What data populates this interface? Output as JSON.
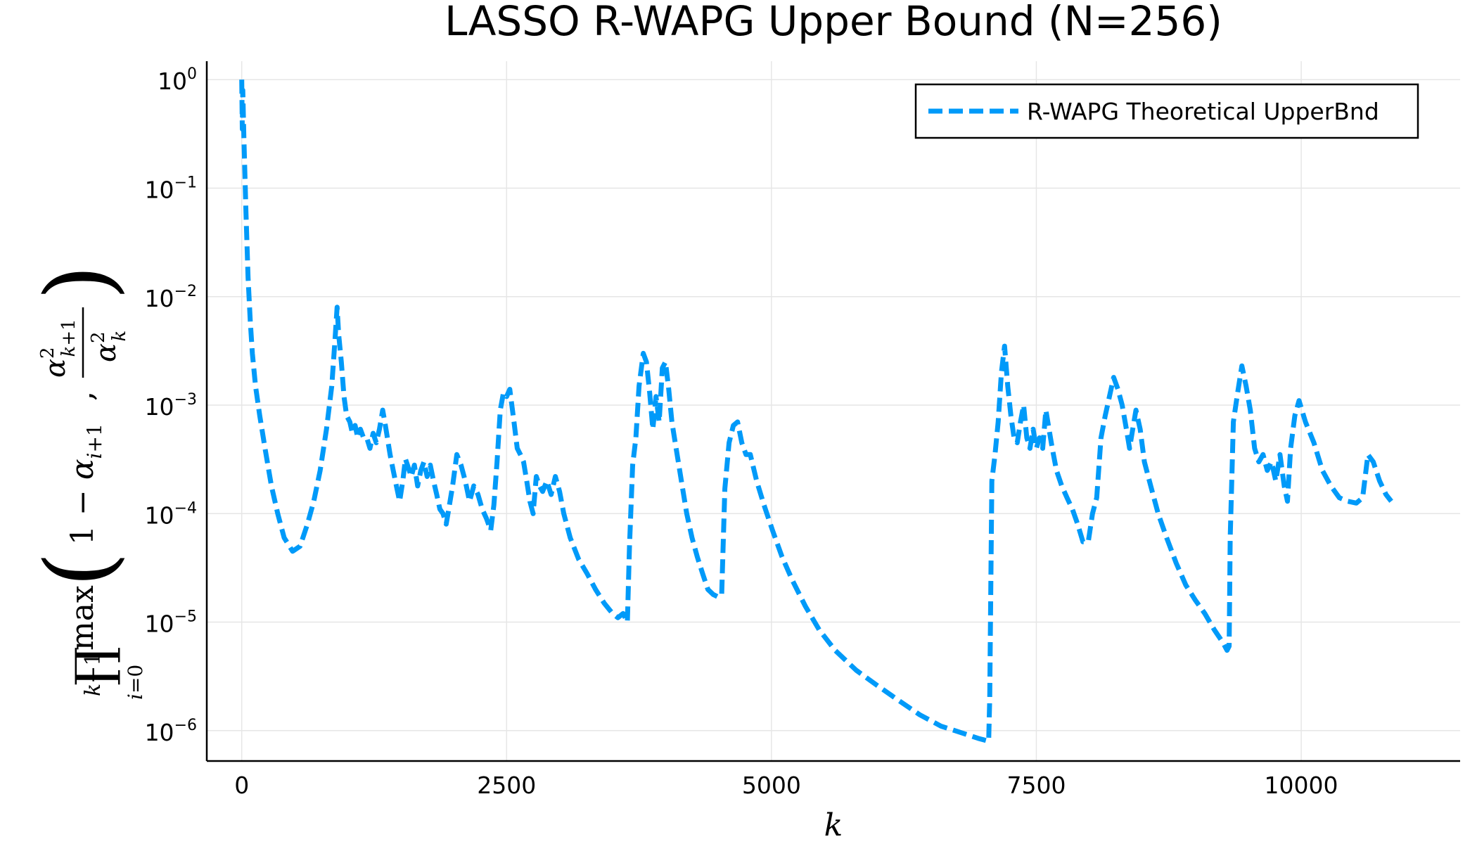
{
  "chart_data": {
    "type": "line",
    "title": "LASSO R-WAPG Upper Bound (N=256)",
    "xlabel": "k",
    "ylabel": "∏_{i=0}^{k−1} max(1 − α_{i+1}, α_{k+1}^2 / α_k^2)",
    "xlim": [
      -330,
      11500
    ],
    "ylim_log10": [
      -6.28,
      0.17
    ],
    "y_scale": "log",
    "x_ticks": [
      0,
      2500,
      5000,
      7500,
      10000
    ],
    "x_tick_labels": [
      "0",
      "2500",
      "5000",
      "7500",
      "10000"
    ],
    "y_ticks_log10": [
      0,
      -1,
      -2,
      -3,
      -4,
      -5,
      -6
    ],
    "y_tick_exponents": [
      "0",
      "−1",
      "−2",
      "−3",
      "−4",
      "−5",
      "−6"
    ],
    "y_tick_base": "10",
    "grid": true,
    "legend_position": "top-right",
    "series": [
      {
        "name": "R-WAPG Theoretical UpperBnd",
        "color": "#009AF9",
        "line_style": "dashed",
        "points": [
          [
            0,
            1.0
          ],
          [
            5,
            0.35
          ],
          [
            10,
            0.8
          ],
          [
            20,
            0.3
          ],
          [
            40,
            0.06
          ],
          [
            60,
            0.015
          ],
          [
            80,
            0.006
          ],
          [
            100,
            0.003
          ],
          [
            130,
            0.0015
          ],
          [
            170,
            0.0008
          ],
          [
            220,
            0.0004
          ],
          [
            280,
            0.00018
          ],
          [
            340,
            0.0001
          ],
          [
            400,
            6e-05
          ],
          [
            480,
            4.5e-05
          ],
          [
            550,
            5e-05
          ],
          [
            620,
            8e-05
          ],
          [
            680,
            0.00013
          ],
          [
            740,
            0.00025
          ],
          [
            800,
            0.0006
          ],
          [
            850,
            0.0015
          ],
          [
            880,
            0.004
          ],
          [
            900,
            0.008
          ],
          [
            915,
            0.0045
          ],
          [
            940,
            0.0025
          ],
          [
            965,
            0.0012
          ],
          [
            990,
            0.0008
          ],
          [
            1020,
            0.0007
          ],
          [
            1045,
            0.00055
          ],
          [
            1070,
            0.00065
          ],
          [
            1095,
            0.0005
          ],
          [
            1120,
            0.0006
          ],
          [
            1150,
            0.0005
          ],
          [
            1180,
            0.0005
          ],
          [
            1210,
            0.0004
          ],
          [
            1240,
            0.00055
          ],
          [
            1270,
            0.00045
          ],
          [
            1300,
            0.0006
          ],
          [
            1330,
            0.0009
          ],
          [
            1350,
            0.0007
          ],
          [
            1375,
            0.0005
          ],
          [
            1400,
            0.00035
          ],
          [
            1430,
            0.00025
          ],
          [
            1460,
            0.00018
          ],
          [
            1490,
            0.00013
          ],
          [
            1520,
            0.0002
          ],
          [
            1545,
            0.00032
          ],
          [
            1570,
            0.00027
          ],
          [
            1600,
            0.00022
          ],
          [
            1630,
            0.00028
          ],
          [
            1660,
            0.00018
          ],
          [
            1690,
            0.00025
          ],
          [
            1720,
            0.0003
          ],
          [
            1750,
            0.00022
          ],
          [
            1780,
            0.00028
          ],
          [
            1810,
            0.0002
          ],
          [
            1840,
            0.00015
          ],
          [
            1870,
            0.00011
          ],
          [
            1900,
            0.0001
          ],
          [
            1930,
            8e-05
          ],
          [
            1960,
            0.00012
          ],
          [
            1990,
            0.00018
          ],
          [
            2030,
            0.00035
          ],
          [
            2070,
            0.00028
          ],
          [
            2110,
            0.0002
          ],
          [
            2150,
            0.00013
          ],
          [
            2190,
            0.00018
          ],
          [
            2230,
            0.00015
          ],
          [
            2270,
            0.00011
          ],
          [
            2310,
            9e-05
          ],
          [
            2350,
            7e-05
          ],
          [
            2380,
            0.00012
          ],
          [
            2410,
            0.0003
          ],
          [
            2440,
            0.0009
          ],
          [
            2470,
            0.0013
          ],
          [
            2500,
            0.0012
          ],
          [
            2530,
            0.0014
          ],
          [
            2570,
            0.0007
          ],
          [
            2600,
            0.0004
          ],
          [
            2630,
            0.00035
          ],
          [
            2660,
            0.0003
          ],
          [
            2690,
            0.0002
          ],
          [
            2720,
            0.00013
          ],
          [
            2750,
            0.0001
          ],
          [
            2780,
            0.00022
          ],
          [
            2810,
            0.00018
          ],
          [
            2840,
            0.00016
          ],
          [
            2880,
            0.0002
          ],
          [
            2920,
            0.00015
          ],
          [
            2960,
            0.00022
          ],
          [
            3000,
            0.00016
          ],
          [
            3040,
            0.0001
          ],
          [
            3100,
            6e-05
          ],
          [
            3180,
            3.8e-05
          ],
          [
            3260,
            2.8e-05
          ],
          [
            3340,
            2e-05
          ],
          [
            3420,
            1.5e-05
          ],
          [
            3500,
            1.2e-05
          ],
          [
            3550,
            1.1e-05
          ],
          [
            3600,
            1.2e-05
          ],
          [
            3640,
            1e-05
          ],
          [
            3660,
            5e-05
          ],
          [
            3690,
            0.00028
          ],
          [
            3720,
            0.0005
          ],
          [
            3750,
            0.0015
          ],
          [
            3790,
            0.003
          ],
          [
            3820,
            0.0025
          ],
          [
            3850,
            0.0013
          ],
          [
            3880,
            0.0006
          ],
          [
            3910,
            0.0012
          ],
          [
            3940,
            0.0007
          ],
          [
            3970,
            0.0022
          ],
          [
            4000,
            0.0025
          ],
          [
            4030,
            0.0014
          ],
          [
            4060,
            0.0007
          ],
          [
            4100,
            0.0004
          ],
          [
            4150,
            0.0002
          ],
          [
            4200,
            0.0001
          ],
          [
            4250,
            6e-05
          ],
          [
            4300,
            4e-05
          ],
          [
            4350,
            2.8e-05
          ],
          [
            4400,
            2e-05
          ],
          [
            4450,
            1.8e-05
          ],
          [
            4500,
            1.7e-05
          ],
          [
            4530,
            1.8e-05
          ],
          [
            4560,
            0.00017
          ],
          [
            4600,
            0.00045
          ],
          [
            4640,
            0.00065
          ],
          [
            4680,
            0.0007
          ],
          [
            4720,
            0.00045
          ],
          [
            4760,
            0.00035
          ],
          [
            4800,
            0.00035
          ],
          [
            4860,
            0.0002
          ],
          [
            4930,
            0.00012
          ],
          [
            5010,
            7e-05
          ],
          [
            5100,
            4e-05
          ],
          [
            5200,
            2.4e-05
          ],
          [
            5320,
            1.4e-05
          ],
          [
            5450,
            8.5e-06
          ],
          [
            5600,
            5.5e-06
          ],
          [
            5800,
            3.6e-06
          ],
          [
            6000,
            2.6e-06
          ],
          [
            6200,
            1.9e-06
          ],
          [
            6400,
            1.4e-06
          ],
          [
            6600,
            1.1e-06
          ],
          [
            6800,
            9.5e-07
          ],
          [
            6950,
            8.5e-07
          ],
          [
            7050,
            8e-07
          ],
          [
            7060,
            2e-06
          ],
          [
            7080,
            0.0002
          ],
          [
            7110,
            0.00035
          ],
          [
            7140,
            0.0007
          ],
          [
            7170,
            0.002
          ],
          [
            7200,
            0.0035
          ],
          [
            7230,
            0.0015
          ],
          [
            7260,
            0.0008
          ],
          [
            7290,
            0.0005
          ],
          [
            7320,
            0.00045
          ],
          [
            7350,
            0.0007
          ],
          [
            7380,
            0.001
          ],
          [
            7410,
            0.0005
          ],
          [
            7440,
            0.0004
          ],
          [
            7470,
            0.0006
          ],
          [
            7500,
            0.0004
          ],
          [
            7530,
            0.0005
          ],
          [
            7560,
            0.0004
          ],
          [
            7590,
            0.0009
          ],
          [
            7620,
            0.0006
          ],
          [
            7650,
            0.0004
          ],
          [
            7690,
            0.00025
          ],
          [
            7740,
            0.00018
          ],
          [
            7790,
            0.00014
          ],
          [
            7840,
            0.00011
          ],
          [
            7890,
            8e-05
          ],
          [
            7940,
            5.5e-05
          ],
          [
            7990,
            5.5e-05
          ],
          [
            8030,
            0.0001
          ],
          [
            8070,
            0.00014
          ],
          [
            8110,
            0.0005
          ],
          [
            8150,
            0.0008
          ],
          [
            8190,
            0.0012
          ],
          [
            8230,
            0.0018
          ],
          [
            8270,
            0.0014
          ],
          [
            8310,
            0.001
          ],
          [
            8350,
            0.0006
          ],
          [
            8380,
            0.0004
          ],
          [
            8410,
            0.0006
          ],
          [
            8440,
            0.0009
          ],
          [
            8480,
            0.0006
          ],
          [
            8520,
            0.0003
          ],
          [
            8580,
            0.00018
          ],
          [
            8650,
            0.0001
          ],
          [
            8730,
            6e-05
          ],
          [
            8820,
            3.5e-05
          ],
          [
            8910,
            2.2e-05
          ],
          [
            9000,
            1.6e-05
          ],
          [
            9090,
            1.2e-05
          ],
          [
            9180,
            8.5e-06
          ],
          [
            9260,
            6.5e-06
          ],
          [
            9300,
            5.5e-06
          ],
          [
            9320,
            6e-06
          ],
          [
            9330,
            6e-05
          ],
          [
            9360,
            0.0007
          ],
          [
            9400,
            0.0013
          ],
          [
            9440,
            0.0023
          ],
          [
            9480,
            0.0015
          ],
          [
            9520,
            0.0009
          ],
          [
            9560,
            0.0004
          ],
          [
            9600,
            0.0003
          ],
          [
            9640,
            0.00035
          ],
          [
            9680,
            0.00025
          ],
          [
            9720,
            0.0003
          ],
          [
            9760,
            0.0002
          ],
          [
            9800,
            0.00035
          ],
          [
            9840,
            0.00018
          ],
          [
            9870,
            0.00013
          ],
          [
            9900,
            0.0004
          ],
          [
            9940,
            0.0008
          ],
          [
            9980,
            0.0011
          ],
          [
            10040,
            0.0007
          ],
          [
            10120,
            0.00045
          ],
          [
            10200,
            0.00025
          ],
          [
            10280,
            0.00018
          ],
          [
            10360,
            0.00014
          ],
          [
            10440,
            0.00013
          ],
          [
            10520,
            0.000125
          ],
          [
            10580,
            0.00014
          ],
          [
            10630,
            0.00035
          ],
          [
            10680,
            0.0003
          ],
          [
            10740,
            0.0002
          ],
          [
            10800,
            0.00015
          ],
          [
            10850,
            0.00013
          ]
        ]
      }
    ]
  }
}
